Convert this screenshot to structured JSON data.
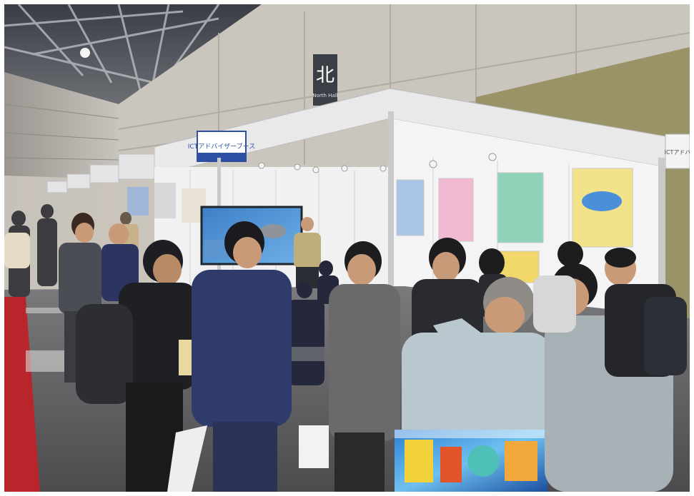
{
  "photo": {
    "description_kind": "exhibition-hall-photo",
    "signs": {
      "hall_block": "北",
      "hall_block_sub": "North Hall",
      "booth_banner": "ICTアドバイザーブース",
      "booth_banner_right": "ICTアドバ"
    }
  }
}
